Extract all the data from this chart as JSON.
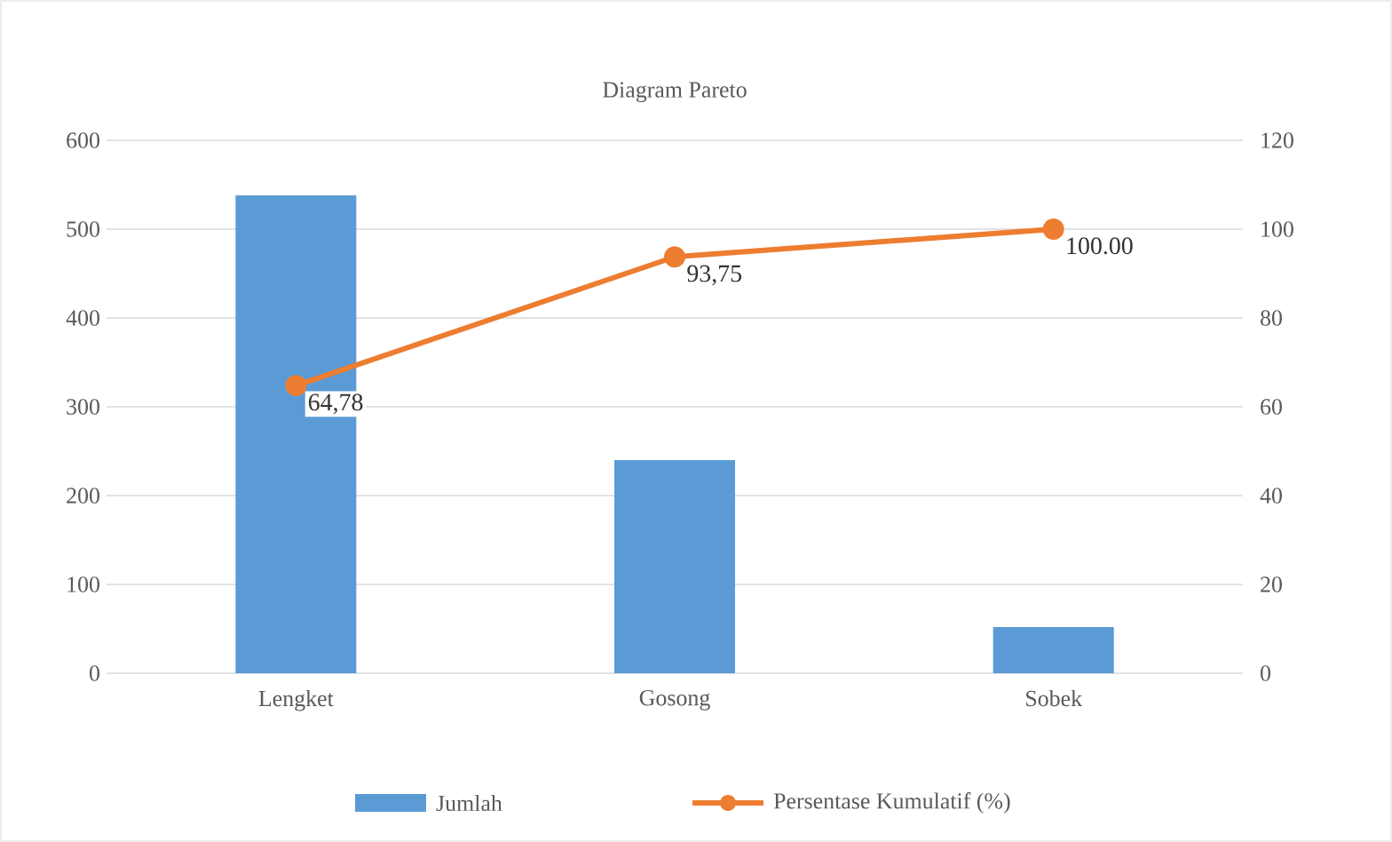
{
  "chart_data": {
    "type": "bar",
    "title": "Diagram Pareto",
    "categories": [
      "Lengket",
      "Gosong",
      "Sobek"
    ],
    "series": [
      {
        "name": "Jumlah",
        "color": "#5b9bd5",
        "values": [
          538,
          240,
          52
        ]
      },
      {
        "name": "Persentase Kumulatif (%)",
        "type": "line",
        "axis": "y2",
        "color": "#ed7d31",
        "values": [
          64.78,
          93.75,
          100.0
        ],
        "value_labels": [
          "64,78",
          "93,75",
          "100.00"
        ]
      }
    ],
    "ylim": [
      0,
      600
    ],
    "yticks": [
      0,
      100,
      200,
      300,
      400,
      500,
      600
    ],
    "y2lim": [
      0,
      120
    ],
    "y2ticks": [
      0,
      20,
      40,
      60,
      80,
      100,
      120
    ],
    "grid": "y",
    "legend": "bottom",
    "marker": "circle",
    "line_style": "solid"
  }
}
